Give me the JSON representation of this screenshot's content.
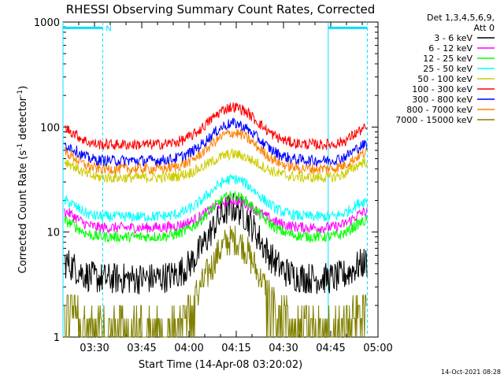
{
  "chart_data": {
    "type": "line",
    "title": "RHESSI Observing Summary Count Rates, Corrected",
    "xlabel": "Start Time (14-Apr-08 03:20:02)",
    "ylabel_prefix": "Corrected Count Rate (s",
    "ylabel_sup1": "-1",
    "ylabel_mid": " detector",
    "ylabel_sup2": "-1",
    "ylabel_suffix": ")",
    "yscale": "log",
    "ylim": [
      1,
      1000
    ],
    "xlim_minutes": [
      0,
      100
    ],
    "x_ticks": [
      {
        "label": "03:30",
        "min": 10
      },
      {
        "label": "03:45",
        "min": 25
      },
      {
        "label": "04:00",
        "min": 40
      },
      {
        "label": "04:15",
        "min": 55
      },
      {
        "label": "04:30",
        "min": 70
      },
      {
        "label": "04:45",
        "min": 85
      },
      {
        "label": "05:00",
        "min": 100
      }
    ],
    "y_ticks": [
      {
        "label": "1",
        "value": 1
      },
      {
        "label": "10",
        "value": 10
      },
      {
        "label": "100",
        "value": 100
      },
      {
        "label": "1000",
        "value": 1000
      }
    ],
    "legend_header_1": "Det 1,3,4,5,6,9,",
    "legend_header_2": "Att 0",
    "series": [
      {
        "name": "3 - 6 keV",
        "color": "#000000",
        "base": 3.6,
        "peak": 17.0
      },
      {
        "name": "6 - 12 keV",
        "color": "#ff00ff",
        "base": 11.0,
        "peak": 20.0
      },
      {
        "name": "12 - 25 keV",
        "color": "#00ff00",
        "base": 9.0,
        "peak": 22.0
      },
      {
        "name": "25 - 50 keV",
        "color": "#00ffff",
        "base": 14.0,
        "peak": 32.0
      },
      {
        "name": "50 - 100 keV",
        "color": "#cccc00",
        "base": 33.0,
        "peak": 55.0
      },
      {
        "name": "100 - 300 keV",
        "color": "#ff0000",
        "base": 68.0,
        "peak": 155.0
      },
      {
        "name": "300 - 800 keV",
        "color": "#0000ff",
        "base": 48.0,
        "peak": 108.0
      },
      {
        "name": "800 - 7000 keV",
        "color": "#ff8000",
        "base": 40.0,
        "peak": 88.0
      },
      {
        "name": "7000 - 15000 keV",
        "color": "#808000",
        "base": 1.4,
        "peak": 8.5
      }
    ],
    "vertical_lines": [
      {
        "min": 0,
        "style": "solid"
      },
      {
        "min": 12.6,
        "style": "dashed"
      },
      {
        "min": 84.2,
        "style": "solid"
      },
      {
        "min": 96.6,
        "style": "dashed"
      }
    ],
    "bars": [
      {
        "from_min": 0,
        "to_min": 12.6,
        "y": 880
      },
      {
        "from_min": 84.2,
        "to_min": 96.6,
        "y": 880
      }
    ],
    "bar_label": "N",
    "bar_label_min": 14.5,
    "timestamp": "14-Oct-2021 08:28"
  }
}
